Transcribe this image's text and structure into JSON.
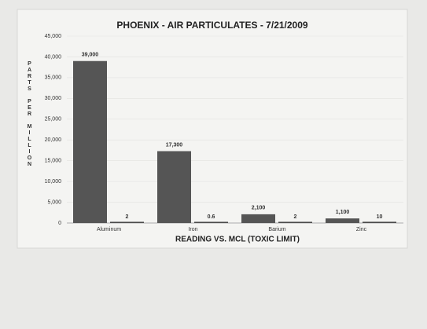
{
  "chart_data": {
    "type": "bar",
    "title": "PHOENIX - AIR PARTICULATES - 7/21/2009",
    "y_label": "PARTS PER MILLION",
    "x_label": "READING VS. MCL (TOXIC LIMIT)",
    "categories": [
      "Aluminum",
      "Iron",
      "Barium",
      "Zinc"
    ],
    "series": [
      {
        "color": "#555555",
        "values": [
          39000,
          17300,
          2100,
          1100
        ],
        "value_labels": [
          "39,000",
          "17,300",
          "2,100",
          "1,100"
        ]
      },
      {
        "color": "#4a4a4a",
        "values": [
          2,
          0.6,
          2,
          10
        ]
      }
    ],
    "ylim": [
      0,
      45000
    ],
    "yticks": [
      0,
      {
        "value": 5000,
        "label": "5,000"
      },
      {
        "value": 10000,
        "label": "10,000"
      },
      {
        "value": 15000,
        "label": "15,000"
      },
      {
        "value": 20000,
        "label": "20,000"
      },
      {
        "value": 25000,
        "label": "25,000"
      },
      {
        "value": 30000,
        "label": "30,000"
      },
      {
        "value": 35000,
        "label": "35,000"
      },
      {
        "value": 40000,
        "label": "40,000"
      },
      {
        "value": 45000,
        "label": "45,000"
      }
    ],
    "grid": true
  }
}
